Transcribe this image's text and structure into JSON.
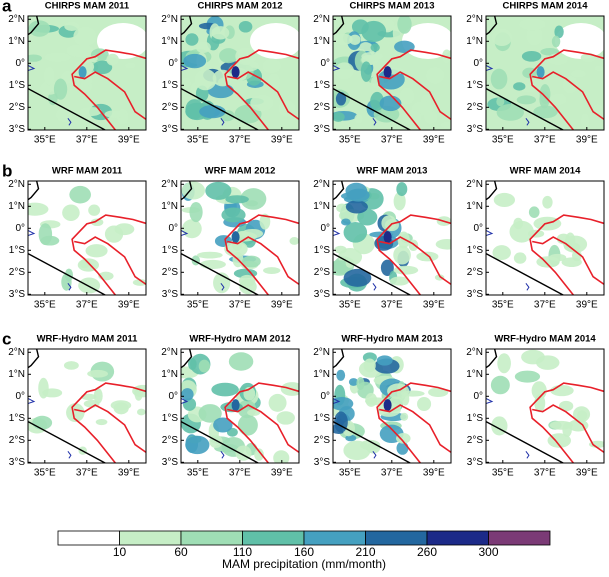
{
  "rows": [
    {
      "letter": "a",
      "titles": [
        "CHIRPS MAM 2011",
        "CHIRPS MAM 2012",
        "CHIRPS MAM 2013",
        "CHIRPS MAM 2014"
      ]
    },
    {
      "letter": "b",
      "titles": [
        "WRF MAM 2011",
        "WRF MAM 2012",
        "WRF MAM 2013",
        "WRF MAM 2014"
      ]
    },
    {
      "letter": "c",
      "titles": [
        "WRF-Hydro MAM 2011",
        "WRF-Hydro MAM 2012",
        "WRF-Hydro MAM 2013",
        "WRF-Hydro MAM 2014"
      ]
    }
  ],
  "lat_ticks": [
    {
      "value": 2,
      "label": "2°N"
    },
    {
      "value": 1,
      "label": "1°N"
    },
    {
      "value": 0,
      "label": "0°"
    },
    {
      "value": -1,
      "label": "1°S"
    },
    {
      "value": -2,
      "label": "2°S"
    },
    {
      "value": -3,
      "label": "3°S"
    }
  ],
  "lon_ticks": [
    {
      "value": 35,
      "label": "35°E"
    },
    {
      "value": 37,
      "label": "37°E"
    },
    {
      "value": 39,
      "label": "39°E"
    }
  ],
  "colorbar": {
    "ticks": [
      10,
      60,
      110,
      160,
      210,
      260,
      300
    ],
    "colors": [
      "#ffffff",
      "#c6eec6",
      "#9fdeb5",
      "#60c0a8",
      "#45a0c0",
      "#23679f",
      "#1c2a88",
      "#7b3a76"
    ],
    "label": "MAM precipitation (mm/month)"
  }
}
